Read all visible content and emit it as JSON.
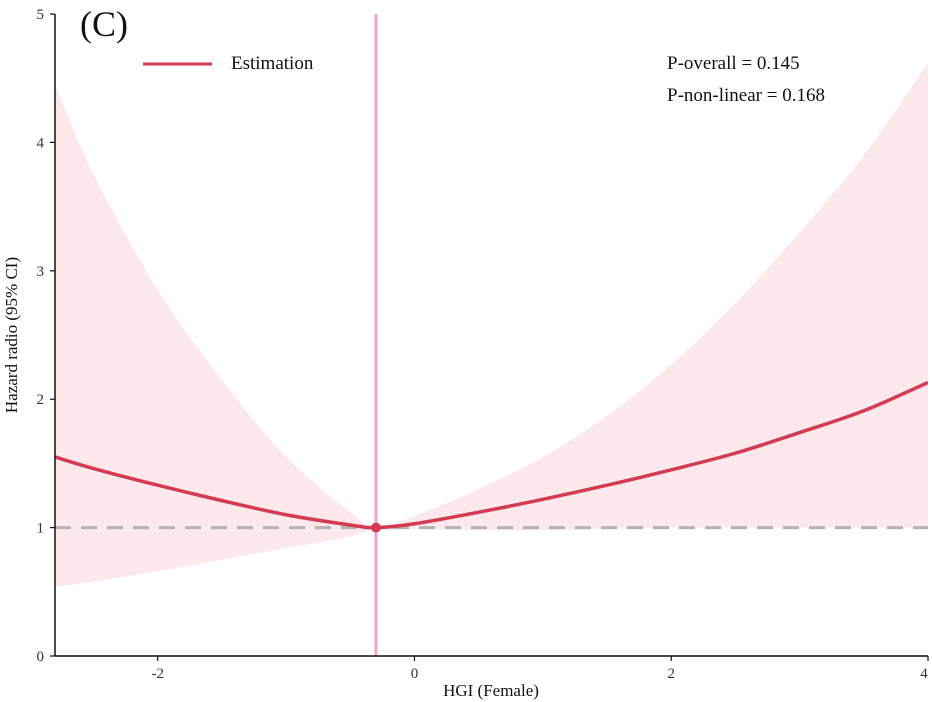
{
  "chart_data": {
    "type": "line",
    "panel_label": "(C)",
    "xlabel": "HGI (Female)",
    "ylabel": "Hazard  radio (95% CI)",
    "xlim": [
      -2.8,
      4.0
    ],
    "ylim": [
      0,
      5
    ],
    "x_ticks": [
      -2,
      0,
      2,
      4
    ],
    "y_ticks": [
      0,
      1,
      2,
      3,
      4,
      5
    ],
    "x_tick_labels": [
      "-2",
      "0",
      "2",
      "4"
    ],
    "y_tick_labels": [
      "0",
      "1",
      "2",
      "3",
      "4",
      "5"
    ],
    "grid": false,
    "legend_position": "top-left",
    "series": [
      {
        "name": "Estimation",
        "x": [
          -2.8,
          -2.5,
          -2.0,
          -1.5,
          -1.0,
          -0.5,
          -0.3,
          0.0,
          0.5,
          1.0,
          1.5,
          2.0,
          2.5,
          3.0,
          3.5,
          4.0
        ],
        "values": [
          1.55,
          1.46,
          1.33,
          1.21,
          1.1,
          1.02,
          1.0,
          1.03,
          1.12,
          1.22,
          1.33,
          1.45,
          1.58,
          1.74,
          1.91,
          2.13
        ],
        "ci_lower": [
          0.54,
          0.58,
          0.66,
          0.75,
          0.84,
          0.93,
          1.0,
          0.99,
          0.98,
          0.98,
          0.99,
          1.0,
          1.0,
          1.0,
          1.0,
          1.0
        ],
        "ci_upper": [
          4.45,
          3.75,
          2.85,
          2.15,
          1.55,
          1.12,
          1.0,
          1.09,
          1.3,
          1.55,
          1.87,
          2.27,
          2.75,
          3.3,
          3.9,
          4.62
        ],
        "color": "#d63a52",
        "ci_color": "#fde8eb"
      }
    ],
    "reference_line": {
      "y": 1,
      "style": "dashed",
      "color": "#b3b3b3"
    },
    "cutoff_line": {
      "x": -0.3,
      "color": "#f4a6c8"
    },
    "annotations": [
      "P-overall = 0.145",
      "P-non-linear = 0.168"
    ]
  }
}
